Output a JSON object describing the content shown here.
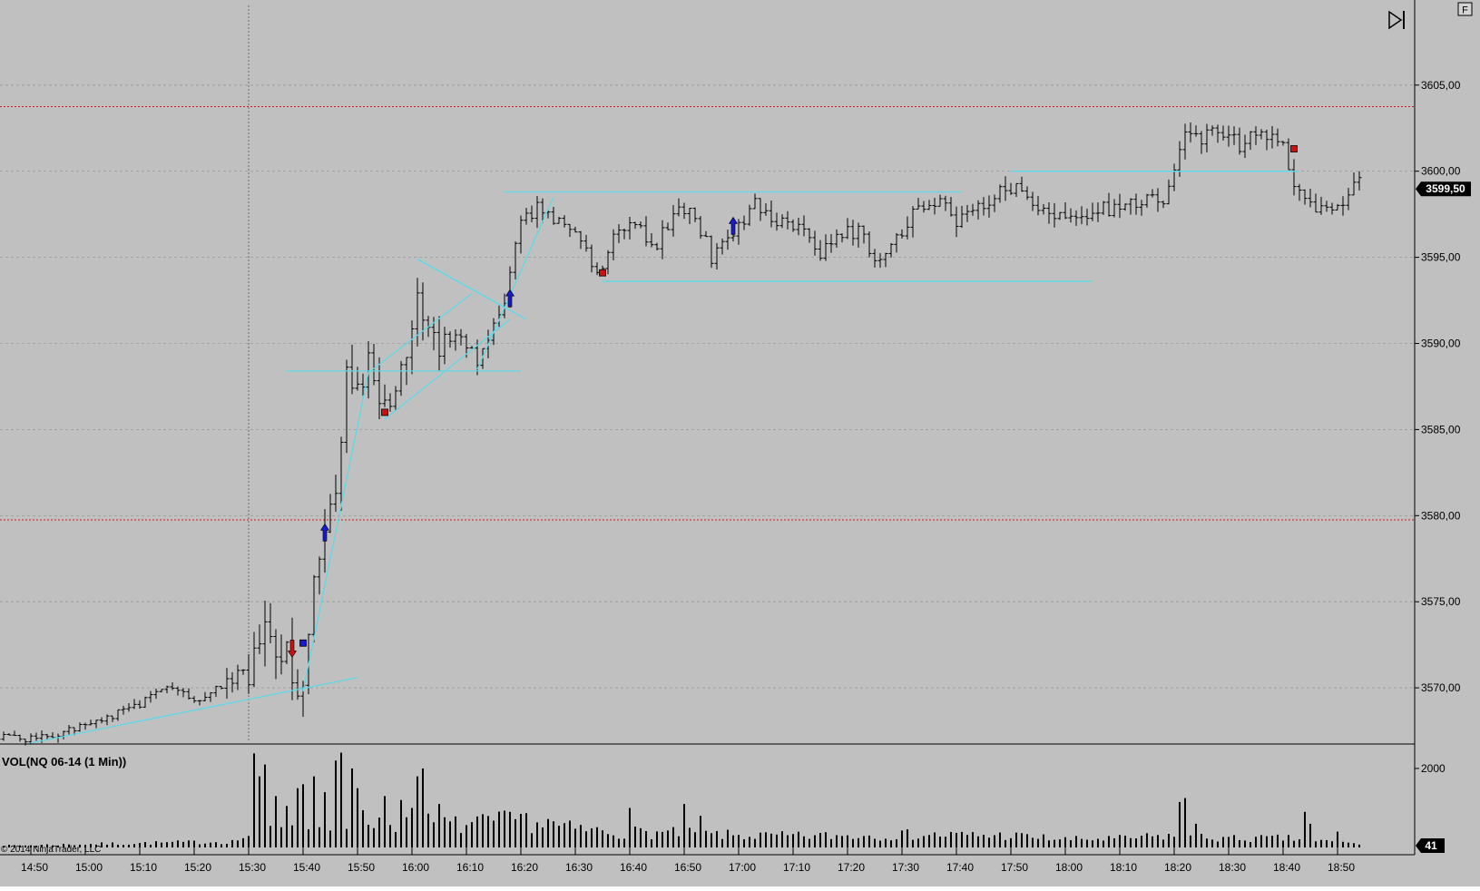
{
  "colors": {
    "background": "#c0c0c0",
    "bar": "#000000",
    "grid": "#9a9a9a",
    "level_line": "#d01818",
    "drawing": "#5fd8e8",
    "buy_marker": "#1a1acc",
    "sell_marker": "#cc1010",
    "price_badge_bg": "#000000",
    "price_badge_fg": "#ffffff"
  },
  "toolbar": {
    "play_icon": "skip-forward-icon",
    "corner_label": "F"
  },
  "chart_data": [
    {
      "type": "ohlc",
      "instrument": "NQ 06-14 (1 Min)",
      "ylim": [
        3564.0,
        3610.5
      ],
      "yticks": [
        3570,
        3575,
        3580,
        3585,
        3590,
        3595,
        3600,
        3605
      ],
      "ytick_labels": [
        "3570,00",
        "3575,00",
        "3580,00",
        "3585,00",
        "3590,00",
        "3595,00",
        "3600,00",
        "3605,00"
      ],
      "last_price": 3599.5,
      "last_price_label": "3599,50",
      "levels": [
        3603.75,
        3579.75
      ],
      "x_start": "14:43",
      "x_end": "18:55",
      "xticks": [
        "14:50",
        "15:00",
        "15:10",
        "15:20",
        "15:30",
        "15:40",
        "15:50",
        "16:00",
        "16:10",
        "16:20",
        "16:30",
        "16:40",
        "16:50",
        "17:00",
        "17:10",
        "17:20",
        "17:30",
        "17:40",
        "17:50",
        "18:00",
        "18:10",
        "18:20",
        "18:30",
        "18:40",
        "18:50"
      ],
      "cursor_time": "15:30",
      "path_anchors": [
        [
          "14:44",
          3567.2
        ],
        [
          "14:50",
          3567.0
        ],
        [
          "15:00",
          3567.8
        ],
        [
          "15:10",
          3569.0
        ],
        [
          "15:15",
          3570.2
        ],
        [
          "15:20",
          3569.2
        ],
        [
          "15:25",
          3570.2
        ],
        [
          "15:30",
          3571.0
        ],
        [
          "15:33",
          3573.5
        ],
        [
          "15:37",
          3572.0
        ],
        [
          "15:40",
          3569.5
        ],
        [
          "15:42",
          3576.5
        ],
        [
          "15:44",
          3578.5
        ],
        [
          "15:46",
          3582.0
        ],
        [
          "15:48",
          3588.0
        ],
        [
          "15:52",
          3588.5
        ],
        [
          "15:55",
          3586.0
        ],
        [
          "15:58",
          3588.0
        ],
        [
          "16:01",
          3592.5
        ],
        [
          "16:04",
          3590.0
        ],
        [
          "16:08",
          3590.5
        ],
        [
          "16:12",
          3589.0
        ],
        [
          "16:14",
          3590.5
        ],
        [
          "16:17",
          3592.5
        ],
        [
          "16:20",
          3597.0
        ],
        [
          "16:23",
          3598.0
        ],
        [
          "16:27",
          3597.0
        ],
        [
          "16:31",
          3596.0
        ],
        [
          "16:34",
          3594.0
        ],
        [
          "16:38",
          3597.0
        ],
        [
          "16:42",
          3596.5
        ],
        [
          "16:45",
          3595.8
        ],
        [
          "16:49",
          3598.0
        ],
        [
          "16:52",
          3597.5
        ],
        [
          "16:55",
          3595.0
        ],
        [
          "16:58",
          3596.0
        ],
        [
          "17:00",
          3597.0
        ],
        [
          "17:03",
          3598.0
        ],
        [
          "17:07",
          3597.0
        ],
        [
          "17:12",
          3596.5
        ],
        [
          "17:15",
          3595.0
        ],
        [
          "17:18",
          3596.5
        ],
        [
          "17:22",
          3596.5
        ],
        [
          "17:25",
          3595.0
        ],
        [
          "17:29",
          3596.0
        ],
        [
          "17:32",
          3597.5
        ],
        [
          "17:37",
          3598.5
        ],
        [
          "17:40",
          3597.0
        ],
        [
          "17:45",
          3598.0
        ],
        [
          "17:48",
          3599.0
        ],
        [
          "17:52",
          3599.0
        ],
        [
          "17:55",
          3598.0
        ],
        [
          "18:00",
          3597.2
        ],
        [
          "18:05",
          3597.8
        ],
        [
          "18:10",
          3597.8
        ],
        [
          "18:15",
          3598.5
        ],
        [
          "18:18",
          3598.5
        ],
        [
          "18:20",
          3600.0
        ],
        [
          "18:22",
          3602.5
        ],
        [
          "18:25",
          3602.0
        ],
        [
          "18:28",
          3602.5
        ],
        [
          "18:32",
          3601.5
        ],
        [
          "18:35",
          3602.3
        ],
        [
          "18:38",
          3601.8
        ],
        [
          "18:40",
          3601.3
        ],
        [
          "18:42",
          3599.5
        ],
        [
          "18:45",
          3597.8
        ],
        [
          "18:48",
          3597.5
        ],
        [
          "18:51",
          3597.8
        ],
        [
          "18:53",
          3599.2
        ],
        [
          "18:54",
          3599.5
        ]
      ],
      "markers": [
        {
          "time": "15:38",
          "price": 3572.3,
          "kind": "arrow-down",
          "color": "sell"
        },
        {
          "time": "15:40",
          "price": 3572.6,
          "kind": "square",
          "color": "buy"
        },
        {
          "time": "15:44",
          "price": 3579.0,
          "kind": "arrow-up",
          "color": "buy"
        },
        {
          "time": "15:55",
          "price": 3586.0,
          "kind": "square",
          "color": "sell"
        },
        {
          "time": "16:18",
          "price": 3592.6,
          "kind": "arrow-up",
          "color": "buy"
        },
        {
          "time": "16:35",
          "price": 3594.1,
          "kind": "square",
          "color": "sell"
        },
        {
          "time": "16:59",
          "price": 3596.8,
          "kind": "arrow-up",
          "color": "buy"
        },
        {
          "time": "18:42",
          "price": 3601.3,
          "kind": "square",
          "color": "sell"
        }
      ],
      "drawings": [
        {
          "from": [
            "14:50",
            3566.8
          ],
          "to": [
            "15:50",
            3570.6
          ]
        },
        {
          "from": [
            "15:40",
            3569.8
          ],
          "to": [
            "15:52",
            3588.3
          ]
        },
        {
          "from": [
            "15:52",
            3588.3
          ],
          "to": [
            "16:11",
            3592.9
          ]
        },
        {
          "from": [
            "15:55",
            3585.6
          ],
          "to": [
            "16:18",
            3591.4
          ]
        },
        {
          "from": [
            "15:37",
            3588.4
          ],
          "to": [
            "16:20",
            3588.4
          ]
        },
        {
          "from": [
            "16:01",
            3594.9
          ],
          "to": [
            "16:17",
            3592.1
          ]
        },
        {
          "from": [
            "16:01",
            3594.9
          ],
          "to": [
            "16:21",
            3591.4
          ]
        },
        {
          "from": [
            "16:12",
            3588.5
          ],
          "to": [
            "16:26",
            3598.5
          ]
        },
        {
          "from": [
            "16:17",
            3598.8
          ],
          "to": [
            "17:41",
            3598.8
          ]
        },
        {
          "from": [
            "16:35",
            3593.6
          ],
          "to": [
            "18:05",
            3593.6
          ]
        },
        {
          "from": [
            "17:50",
            3600.0
          ],
          "to": [
            "18:43",
            3600.0
          ]
        }
      ]
    },
    {
      "type": "bar",
      "title": "VOL(NQ 06-14 (1 Min))",
      "ylim": [
        0,
        2550
      ],
      "yticks": [
        2000
      ],
      "ytick_labels": [
        "2000"
      ],
      "last_value": 41,
      "last_value_label": "41",
      "spikes": [
        [
          "15:31",
          2380
        ],
        [
          "15:32",
          1800
        ],
        [
          "15:33",
          2100
        ],
        [
          "15:35",
          1300
        ],
        [
          "15:37",
          1050
        ],
        [
          "15:39",
          1500
        ],
        [
          "15:40",
          1600
        ],
        [
          "15:42",
          1800
        ],
        [
          "15:44",
          1400
        ],
        [
          "15:46",
          2200
        ],
        [
          "15:47",
          2400
        ],
        [
          "15:49",
          2000
        ],
        [
          "15:50",
          1500
        ],
        [
          "15:55",
          1300
        ],
        [
          "15:58",
          1200
        ],
        [
          "16:00",
          1000
        ],
        [
          "16:01",
          1800
        ],
        [
          "16:02",
          2000
        ],
        [
          "16:05",
          1100
        ],
        [
          "16:18",
          900
        ],
        [
          "16:20",
          850
        ],
        [
          "16:25",
          720
        ],
        [
          "16:40",
          1000
        ],
        [
          "16:50",
          1100
        ],
        [
          "16:53",
          800
        ],
        [
          "18:21",
          1150
        ],
        [
          "18:22",
          1250
        ],
        [
          "18:24",
          600
        ],
        [
          "18:44",
          900
        ],
        [
          "18:45",
          600
        ],
        [
          "18:50",
          400
        ]
      ],
      "base_volume": [
        [
          "14:43",
          40
        ],
        [
          "15:27",
          150
        ],
        [
          "15:30",
          300
        ],
        [
          "15:48",
          700
        ],
        [
          "16:00",
          650
        ],
        [
          "16:10",
          550
        ],
        [
          "16:20",
          700
        ],
        [
          "16:30",
          450
        ],
        [
          "16:40",
          380
        ],
        [
          "16:50",
          350
        ],
        [
          "17:00",
          300
        ],
        [
          "17:10",
          280
        ],
        [
          "17:30",
          320
        ],
        [
          "17:50",
          300
        ],
        [
          "18:00",
          200
        ],
        [
          "18:10",
          220
        ],
        [
          "18:20",
          300
        ],
        [
          "18:30",
          220
        ],
        [
          "18:40",
          230
        ],
        [
          "18:55",
          80
        ]
      ]
    }
  ],
  "footer": {
    "copyright": "© 2014 NinjaTrader, LLC"
  }
}
